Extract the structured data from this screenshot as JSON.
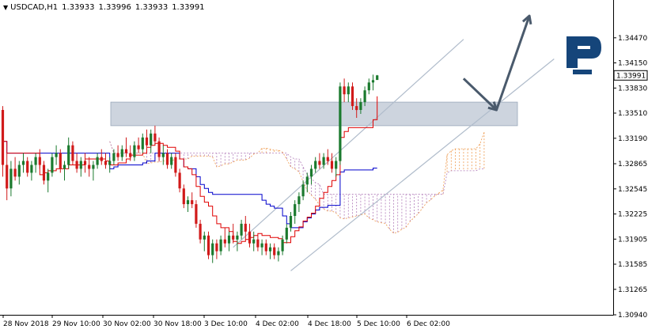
{
  "header": {
    "symbol": "USDCAD,H1",
    "open": "1.33933",
    "high": "1.33996",
    "low": "1.33933",
    "close": "1.33991"
  },
  "colors": {
    "bull": "#1b7a2e",
    "bear": "#d11a1a",
    "tenkan": "#e00000",
    "kijun": "#0000cc",
    "cloud": "#ee9a4d",
    "cloud_b": "#b07ab8",
    "channel": "#b0bccb",
    "zone": "#c4ccd8",
    "arrow": "#4a5a6c",
    "last_price_bg": "#ffffff"
  },
  "logo": {
    "name": "roboforex-logo-icon",
    "color": "#15457a"
  },
  "chart_data": {
    "type": "candlestick",
    "title": "",
    "symbol": "USDCAD",
    "timeframe": "H1",
    "ylim": [
      1.3094,
      1.3479
    ],
    "y_ticks": [
      "1.34470",
      "1.34150",
      "1.33830",
      "1.33510",
      "1.33190",
      "1.32865",
      "1.32545",
      "1.32225",
      "1.31905",
      "1.31585",
      "1.31265",
      "1.30940"
    ],
    "x_ticks": [
      "28 Nov 2018",
      "29 Nov 10:00",
      "30 Nov 02:00",
      "30 Nov 18:00",
      "3 Dec 10:00",
      "4 Dec 02:00",
      "4 Dec 18:00",
      "5 Dec 10:00",
      "6 Dec 02:00"
    ],
    "last_price": "1.33991",
    "candles": [
      [
        1.3355,
        1.336,
        1.327,
        1.3285
      ],
      [
        1.3285,
        1.33,
        1.324,
        1.3255
      ],
      [
        1.3255,
        1.329,
        1.3245,
        1.328
      ],
      [
        1.328,
        1.3295,
        1.3265,
        1.327
      ],
      [
        1.327,
        1.329,
        1.326,
        1.3285
      ],
      [
        1.3285,
        1.33,
        1.3275,
        1.329
      ],
      [
        1.329,
        1.3295,
        1.327,
        1.3275
      ],
      [
        1.3275,
        1.329,
        1.3265,
        1.3285
      ],
      [
        1.3285,
        1.33,
        1.3275,
        1.3295
      ],
      [
        1.3295,
        1.3305,
        1.328,
        1.3285
      ],
      [
        1.3285,
        1.329,
        1.326,
        1.3265
      ],
      [
        1.3265,
        1.328,
        1.325,
        1.3275
      ],
      [
        1.3275,
        1.33,
        1.327,
        1.3295
      ],
      [
        1.3295,
        1.331,
        1.3285,
        1.33
      ],
      [
        1.33,
        1.3305,
        1.3275,
        1.328
      ],
      [
        1.328,
        1.329,
        1.3265,
        1.3285
      ],
      [
        1.3285,
        1.332,
        1.328,
        1.331
      ],
      [
        1.331,
        1.3315,
        1.3285,
        1.329
      ],
      [
        1.329,
        1.33,
        1.3275,
        1.328
      ],
      [
        1.328,
        1.3295,
        1.327,
        1.329
      ],
      [
        1.329,
        1.33,
        1.3275,
        1.3285
      ],
      [
        1.3285,
        1.3295,
        1.327,
        1.328
      ],
      [
        1.328,
        1.329,
        1.3265,
        1.3285
      ],
      [
        1.3285,
        1.33,
        1.328,
        1.3295
      ],
      [
        1.3295,
        1.3305,
        1.3285,
        1.329
      ],
      [
        1.329,
        1.33,
        1.328,
        1.3285
      ],
      [
        1.3285,
        1.3295,
        1.3275,
        1.329
      ],
      [
        1.329,
        1.3305,
        1.3285,
        1.33
      ],
      [
        1.33,
        1.331,
        1.329,
        1.3295
      ],
      [
        1.3295,
        1.331,
        1.329,
        1.3305
      ],
      [
        1.3305,
        1.332,
        1.3295,
        1.33
      ],
      [
        1.33,
        1.331,
        1.329,
        1.3295
      ],
      [
        1.3295,
        1.3315,
        1.329,
        1.331
      ],
      [
        1.331,
        1.332,
        1.33,
        1.3305
      ],
      [
        1.3305,
        1.3325,
        1.33,
        1.332
      ],
      [
        1.332,
        1.333,
        1.3305,
        1.331
      ],
      [
        1.331,
        1.333,
        1.33,
        1.3325
      ],
      [
        1.3325,
        1.3335,
        1.331,
        1.3315
      ],
      [
        1.3315,
        1.332,
        1.329,
        1.3295
      ],
      [
        1.3295,
        1.331,
        1.3285,
        1.33
      ],
      [
        1.33,
        1.3305,
        1.328,
        1.3285
      ],
      [
        1.3285,
        1.33,
        1.328,
        1.3295
      ],
      [
        1.3295,
        1.33,
        1.327,
        1.3275
      ],
      [
        1.3275,
        1.328,
        1.325,
        1.3255
      ],
      [
        1.3255,
        1.326,
        1.323,
        1.3235
      ],
      [
        1.3235,
        1.3245,
        1.3225,
        1.324
      ],
      [
        1.324,
        1.325,
        1.323,
        1.3235
      ],
      [
        1.3235,
        1.324,
        1.3205,
        1.321
      ],
      [
        1.321,
        1.3215,
        1.3185,
        1.319
      ],
      [
        1.319,
        1.32,
        1.3175,
        1.3195
      ],
      [
        1.3195,
        1.32,
        1.3165,
        1.317
      ],
      [
        1.317,
        1.319,
        1.316,
        1.3185
      ],
      [
        1.3185,
        1.319,
        1.3165,
        1.3175
      ],
      [
        1.3175,
        1.3195,
        1.317,
        1.319
      ],
      [
        1.319,
        1.3205,
        1.318,
        1.3185
      ],
      [
        1.3185,
        1.32,
        1.3175,
        1.3195
      ],
      [
        1.3195,
        1.321,
        1.3185,
        1.319
      ],
      [
        1.319,
        1.32,
        1.3175,
        1.3195
      ],
      [
        1.3195,
        1.3215,
        1.319,
        1.321
      ],
      [
        1.321,
        1.322,
        1.319,
        1.32
      ],
      [
        1.32,
        1.321,
        1.318,
        1.3185
      ],
      [
        1.3185,
        1.32,
        1.3175,
        1.319
      ],
      [
        1.319,
        1.3195,
        1.3175,
        1.318
      ],
      [
        1.318,
        1.319,
        1.317,
        1.3185
      ],
      [
        1.3185,
        1.319,
        1.317,
        1.3175
      ],
      [
        1.3175,
        1.3185,
        1.3165,
        1.318
      ],
      [
        1.318,
        1.3185,
        1.3165,
        1.317
      ],
      [
        1.317,
        1.318,
        1.3162,
        1.3175
      ],
      [
        1.3175,
        1.3195,
        1.317,
        1.319
      ],
      [
        1.319,
        1.321,
        1.3185,
        1.3205
      ],
      [
        1.3205,
        1.3225,
        1.32,
        1.322
      ],
      [
        1.322,
        1.324,
        1.321,
        1.3235
      ],
      [
        1.3235,
        1.325,
        1.3225,
        1.3245
      ],
      [
        1.3245,
        1.3265,
        1.324,
        1.326
      ],
      [
        1.326,
        1.3275,
        1.325,
        1.327
      ],
      [
        1.327,
        1.3285,
        1.326,
        1.328
      ],
      [
        1.328,
        1.3295,
        1.3275,
        1.329
      ],
      [
        1.329,
        1.33,
        1.328,
        1.3285
      ],
      [
        1.3285,
        1.33,
        1.328,
        1.3295
      ],
      [
        1.3295,
        1.3305,
        1.3285,
        1.329
      ],
      [
        1.329,
        1.33,
        1.3275,
        1.328
      ],
      [
        1.328,
        1.3295,
        1.327,
        1.329
      ],
      [
        1.329,
        1.339,
        1.3285,
        1.3385
      ],
      [
        1.3385,
        1.3395,
        1.3365,
        1.3375
      ],
      [
        1.3375,
        1.339,
        1.3365,
        1.3385
      ],
      [
        1.3385,
        1.339,
        1.3355,
        1.336
      ],
      [
        1.336,
        1.337,
        1.3345,
        1.3355
      ],
      [
        1.3355,
        1.337,
        1.335,
        1.3365
      ],
      [
        1.3365,
        1.3385,
        1.336,
        1.338
      ],
      [
        1.338,
        1.3395,
        1.3375,
        1.339
      ],
      [
        1.339,
        1.34,
        1.338,
        1.3393
      ],
      [
        1.33933,
        1.33996,
        1.33933,
        1.33991
      ]
    ],
    "channel_upper": [
      [
        56,
        1.318
      ],
      [
        112,
        1.3445
      ]
    ],
    "channel_lower": [
      [
        70,
        1.315
      ],
      [
        134,
        1.342
      ]
    ],
    "resistance_zone": [
      1.3335,
      1.3365
    ],
    "forecast_path": [
      [
        112,
        1.3395
      ],
      [
        120,
        1.3355
      ],
      [
        128,
        1.3475
      ]
    ]
  }
}
